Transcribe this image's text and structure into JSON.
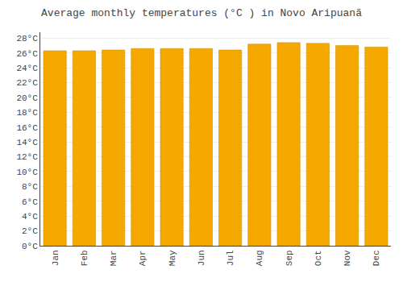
{
  "chart_data": {
    "type": "bar",
    "title": "Average monthly temperatures (°C ) in Novo Aripuanã",
    "categories": [
      "Jan",
      "Feb",
      "Mar",
      "Apr",
      "May",
      "Jun",
      "Jul",
      "Aug",
      "Sep",
      "Oct",
      "Nov",
      "Dec"
    ],
    "values": [
      26.3,
      26.3,
      26.4,
      26.6,
      26.6,
      26.6,
      26.4,
      27.2,
      27.4,
      27.3,
      27.0,
      26.8
    ],
    "color": "#F5A800",
    "ylim": [
      0,
      28.8
    ],
    "yticks": [
      {
        "value": 0,
        "label": "0°C"
      },
      {
        "value": 2,
        "label": "2°C"
      },
      {
        "value": 4,
        "label": "4°C"
      },
      {
        "value": 6,
        "label": "6°C"
      },
      {
        "value": 8,
        "label": "8°C"
      },
      {
        "value": 10,
        "label": "10°C"
      },
      {
        "value": 12,
        "label": "12°C"
      },
      {
        "value": 14,
        "label": "14°C"
      },
      {
        "value": 16,
        "label": "16°C"
      },
      {
        "value": 18,
        "label": "18°C"
      },
      {
        "value": 20,
        "label": "20°C"
      },
      {
        "value": 22,
        "label": "22°C"
      },
      {
        "value": 24,
        "label": "24°C"
      },
      {
        "value": 26,
        "label": "26°C"
      },
      {
        "value": 28,
        "label": "28°C"
      }
    ],
    "grid": true
  }
}
